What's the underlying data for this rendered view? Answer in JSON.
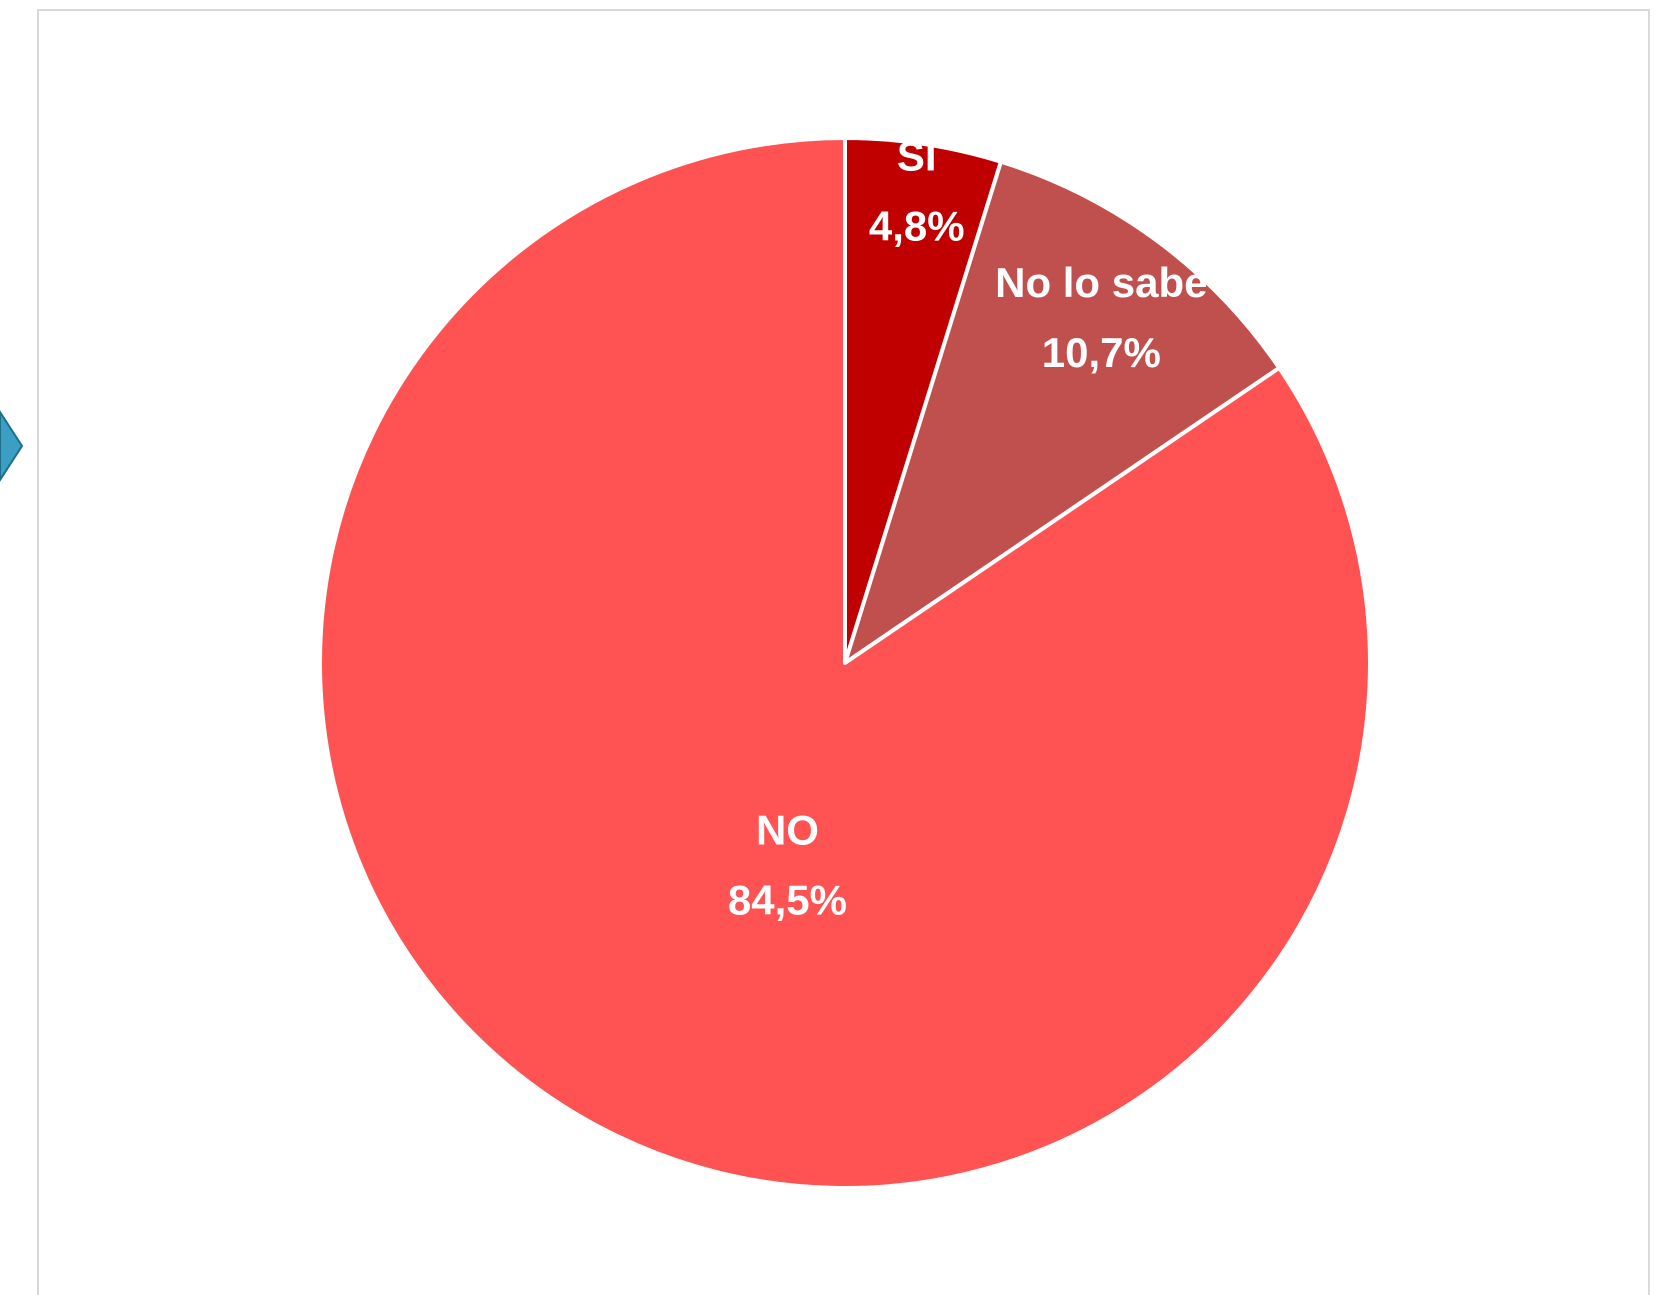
{
  "chart_data": {
    "type": "pie",
    "title": "",
    "slices": [
      {
        "label": "SI",
        "value": 4.8,
        "value_label": "4,8%",
        "color": "#c00000"
      },
      {
        "label": "No lo sabe",
        "value": 10.7,
        "value_label": "10,7%",
        "color": "#c0504d"
      },
      {
        "label": "NO",
        "value": 84.5,
        "value_label": "84,5%",
        "color": "#ff5252"
      }
    ],
    "start_angle_deg": 0,
    "direction": "clockwise",
    "legend": "none",
    "data_labels": "inside",
    "slice_border_color": "#ffffff"
  },
  "decor": {
    "side_marker_icon": "chevron-right-icon",
    "side_marker_color": "#3a9fc3"
  }
}
